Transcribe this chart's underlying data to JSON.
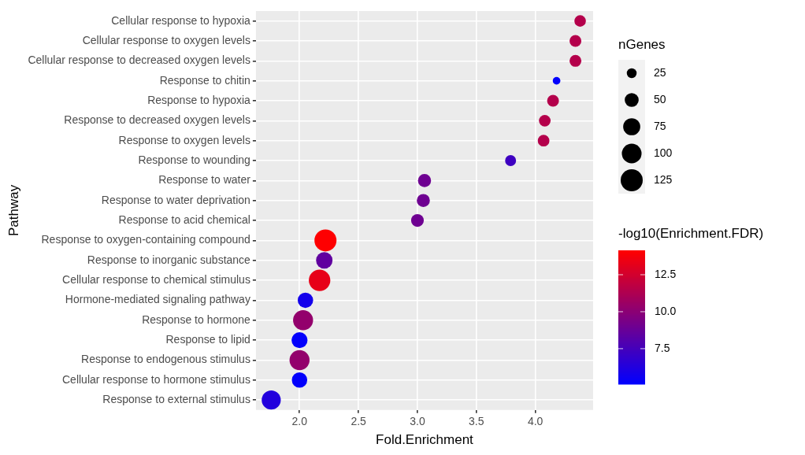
{
  "chart_data": {
    "type": "bubble",
    "categories": [
      "Cellular response to hypoxia",
      "Cellular response to oxygen levels",
      "Cellular response to decreased oxygen levels",
      "Response to chitin",
      "Response to hypoxia",
      "Response to decreased oxygen levels",
      "Response to oxygen levels",
      "Response to wounding",
      "Response to water",
      "Response to water deprivation",
      "Response to acid chemical",
      "Response to oxygen-containing compound",
      "Response to inorganic substance",
      "Cellular response to chemical stimulus",
      "Hormone-mediated signaling pathway",
      "Response to hormone",
      "Response to lipid",
      "Response to endogenous stimulus",
      "Cellular response to hormone stimulus",
      "Response to external stimulus"
    ],
    "values": [
      4.38,
      4.34,
      4.34,
      4.18,
      4.15,
      4.08,
      4.07,
      3.79,
      3.06,
      3.05,
      3.0,
      2.22,
      2.21,
      2.17,
      2.05,
      2.03,
      2.0,
      2.0,
      2.0,
      1.76
    ],
    "sizes": [
      34,
      36,
      36,
      15,
      36,
      35,
      35,
      31,
      44,
      44,
      42,
      125,
      70,
      119,
      61,
      103,
      66,
      103,
      61,
      93
    ],
    "cvalues": [
      11.5,
      11.5,
      11.5,
      5.2,
      11.5,
      11.5,
      11.5,
      7.3,
      9,
      9,
      9,
      14.1,
      8.5,
      13.3,
      5.8,
      10.3,
      5.2,
      10.3,
      5.2,
      6.3
    ],
    "orientation": "horizontal",
    "xlim": [
      1.63,
      4.49
    ],
    "xticks": [
      {
        "value": 2,
        "label": "2.0"
      },
      2.5,
      {
        "value": 3,
        "label": "3.0"
      },
      3.5,
      {
        "value": 4,
        "label": "4.0"
      }
    ],
    "xlabel": "Fold.Enrichment",
    "ylabel": "Pathway",
    "legend_title": "nGenes",
    "size_legend": [
      25,
      50,
      75,
      100,
      125
    ],
    "clabel": "-log10(Enrichment.FDR)",
    "clim": [
      5.1,
      14.15
    ],
    "cticks": [
      7.5,
      {
        "value": 10,
        "label": "10.0"
      },
      12.5
    ],
    "grid": true
  }
}
